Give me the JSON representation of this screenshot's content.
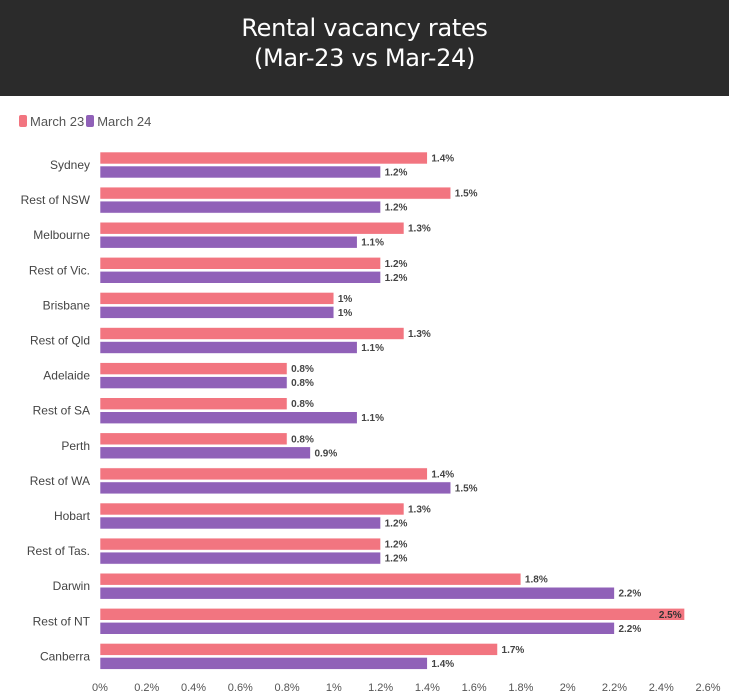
{
  "header": {
    "title_line1": "Rental vacancy rates",
    "title_line2": "(Mar-23 vs Mar-24)"
  },
  "legend": {
    "series1": "March 23",
    "series2": "March 24"
  },
  "colors": {
    "march23": "#f27580",
    "march24": "#9061b8",
    "header_bg": "#2b2b2b"
  },
  "chart_data": {
    "type": "bar",
    "orientation": "horizontal",
    "title": "Rental vacancy rates (Mar-23 vs Mar-24)",
    "xlabel": "",
    "ylabel": "",
    "xlim": [
      0,
      2.6
    ],
    "xticks": [
      "0%",
      "0.2%",
      "0.4%",
      "0.6%",
      "0.8%",
      "1%",
      "1.2%",
      "1.4%",
      "1.6%",
      "1.8%",
      "2%",
      "2.2%",
      "2.4%",
      "2.6%"
    ],
    "grid": false,
    "legend_position": "top-left",
    "categories": [
      "Sydney",
      "Rest of NSW",
      "Melbourne",
      "Rest of Vic.",
      "Brisbane",
      "Rest of Qld",
      "Adelaide",
      "Rest of SA",
      "Perth",
      "Rest of WA",
      "Hobart",
      "Rest of Tas.",
      "Darwin",
      "Rest of NT",
      "Canberra"
    ],
    "series": [
      {
        "name": "March 23",
        "values": [
          1.4,
          1.5,
          1.3,
          1.2,
          1.0,
          1.3,
          0.8,
          0.8,
          0.8,
          1.4,
          1.3,
          1.2,
          1.8,
          2.5,
          1.7
        ],
        "labels": [
          "1.4%",
          "1.5%",
          "1.3%",
          "1.2%",
          "1%",
          "1.3%",
          "0.8%",
          "0.8%",
          "0.8%",
          "1.4%",
          "1.3%",
          "1.2%",
          "1.8%",
          "2.5%",
          "1.7%"
        ]
      },
      {
        "name": "March 24",
        "values": [
          1.2,
          1.2,
          1.1,
          1.2,
          1.0,
          1.1,
          0.8,
          1.1,
          0.9,
          1.5,
          1.2,
          1.2,
          2.2,
          2.2,
          1.4
        ],
        "labels": [
          "1.2%",
          "1.2%",
          "1.1%",
          "1.2%",
          "1%",
          "1.1%",
          "0.8%",
          "1.1%",
          "0.9%",
          "1.5%",
          "1.2%",
          "1.2%",
          "2.2%",
          "2.2%",
          "1.4%"
        ]
      }
    ]
  }
}
